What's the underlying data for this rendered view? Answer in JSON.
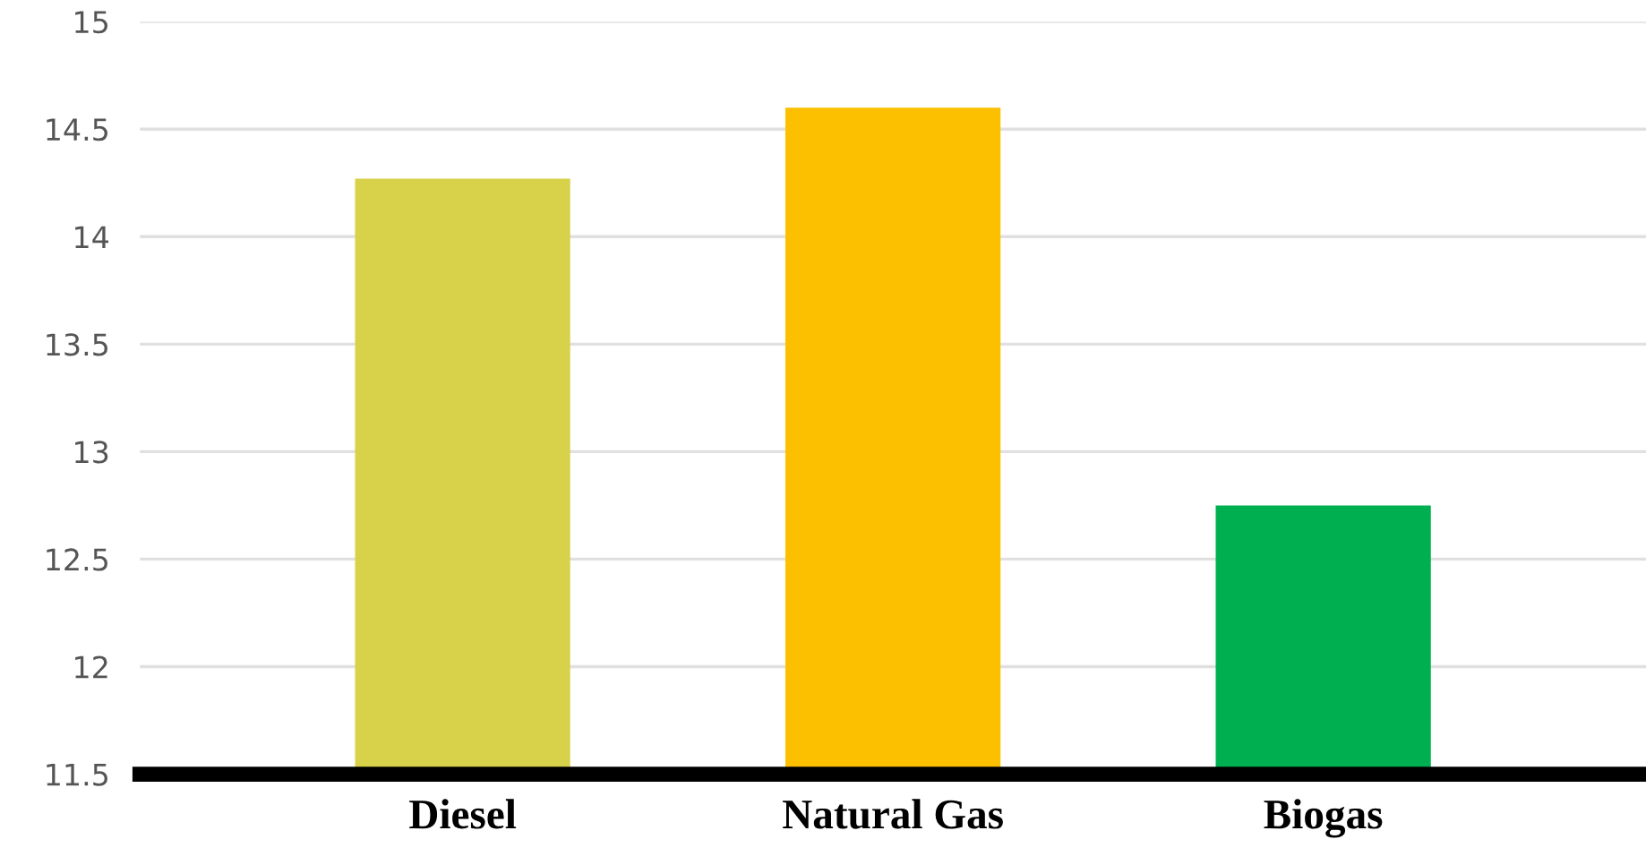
{
  "chart_data": {
    "type": "bar",
    "categories": [
      "Diesel",
      "Natural Gas",
      "Biogas"
    ],
    "values": [
      14.27,
      14.6,
      12.75
    ],
    "colors": [
      "#d7d24a",
      "#fcc000",
      "#00b050"
    ],
    "ylim": [
      11.5,
      15
    ],
    "yticks": [
      11.5,
      12,
      12.5,
      13,
      13.5,
      14,
      14.5,
      15
    ],
    "grid": "y"
  }
}
